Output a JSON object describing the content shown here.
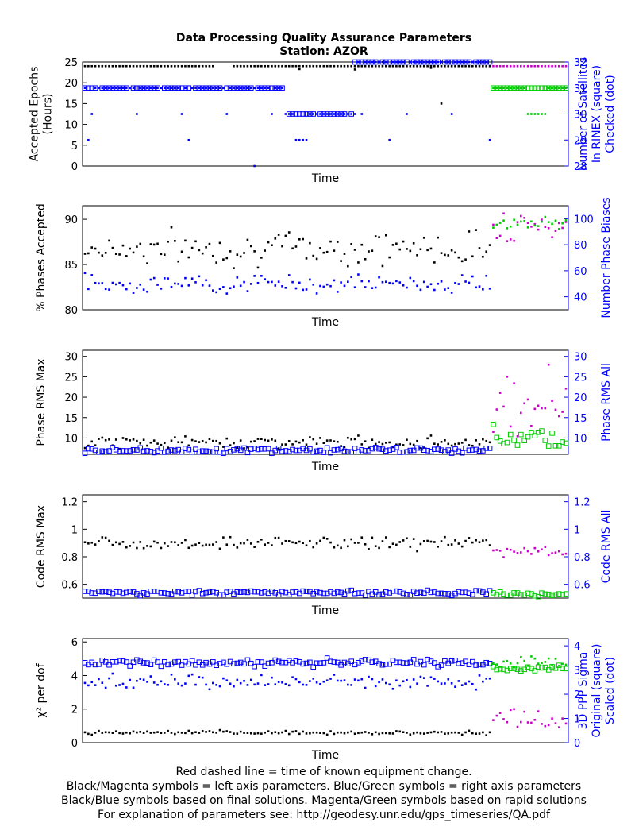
{
  "title": {
    "line1": "Data Processing Quality Assurance Parameters",
    "line2": "Station: AZOR"
  },
  "colors": {
    "final_left": "#000000",
    "rapid_left": "#cc00cc",
    "final_right": "#0000ff",
    "rapid_right": "#00cc00",
    "change_line": "#ff0000"
  },
  "footer": [
    "Red dashed line = time of known equipment change.",
    "Black/Magenta symbols = left axis parameters. Blue/Green symbols = right axis parameters",
    "Black/Blue symbols based on final solutions.  Magenta/Green symbols based on rapid solutions",
    "For explanation of parameters see: http://geodesy.unr.edu/gps_timeseries/QA.pdf"
  ],
  "chart_data": [
    {
      "type": "scatter",
      "xlabel": "Time",
      "ylabel": "Accepted Epochs (Hours)",
      "ylabel_lines": [
        "Accepted Epochs",
        "(Hours)"
      ],
      "ylim": [
        0,
        25
      ],
      "yticks": [
        0,
        5,
        10,
        15,
        20,
        25
      ],
      "y2label_lines": [
        "Number of Satellites",
        "In RINEX (square)",
        "Checked (dot)"
      ],
      "y2lim": [
        28,
        32
      ],
      "y2ticks": [
        28,
        29,
        30,
        31,
        32
      ],
      "series": {
        "left_final": {
          "kind": "const",
          "value": 24,
          "outliers": [
            [
              62,
              23.3
            ],
            [
              78,
              23.2
            ],
            [
              103,
              15
            ],
            [
              100,
              23.6
            ]
          ]
        },
        "left_rapid": {
          "kind": "const",
          "value": 24
        },
        "right_final_rinex": {
          "kind": "band",
          "value": 31,
          "alt": 32,
          "alt_from": 78
        },
        "right_final_checked": {
          "kind": "levels"
        },
        "right_rapid_rinex": {
          "kind": "band",
          "value": 31
        },
        "right_rapid_checked": {
          "kind": "levels"
        }
      }
    },
    {
      "type": "scatter",
      "xlabel": "Time",
      "ylabel": "% Phases Accepted",
      "ylabel_lines": [
        "% Phases Accepted"
      ],
      "ylim": [
        80,
        91.5
      ],
      "yticks": [
        80,
        85,
        90
      ],
      "y2label_lines": [
        "Number Phase Biases"
      ],
      "y2lim": [
        30,
        110
      ],
      "y2ticks": [
        40,
        60,
        80,
        100
      ],
      "series": {
        "left_final": {
          "kind": "noise",
          "mean": 86.8,
          "spread": 1.6
        },
        "left_rapid": {
          "kind": "noise",
          "mean": 89.6,
          "spread": 1.8
        },
        "right_final": {
          "kind": "noise",
          "mean": 50,
          "spread": 6
        },
        "right_rapid": {
          "kind": "noise",
          "mean": 96,
          "spread": 4
        }
      }
    },
    {
      "type": "scatter",
      "xlabel": "Time",
      "ylabel": "Phase RMS Max",
      "ylabel_lines": [
        "Phase RMS Max"
      ],
      "ylim": [
        6,
        31.5
      ],
      "yticks": [
        10,
        15,
        20,
        25,
        30
      ],
      "y2label_lines": [
        "Phase RMS All"
      ],
      "y2lim": [
        6,
        31.5
      ],
      "y2ticks": [
        10,
        15,
        20,
        25,
        30
      ],
      "series": {
        "left_final": {
          "kind": "noise",
          "mean": 9,
          "spread": 1.2
        },
        "left_rapid": {
          "kind": "noise",
          "mean": 19,
          "spread": 7
        },
        "right_final": {
          "kind": "noise",
          "mean": 7,
          "spread": 0.6
        },
        "right_rapid": {
          "kind": "noise",
          "mean": 10.5,
          "spread": 2.5
        }
      }
    },
    {
      "type": "scatter",
      "xlabel": "Time",
      "ylabel": "Code RMS Max",
      "ylabel_lines": [
        "Code RMS Max"
      ],
      "ylim": [
        0.5,
        1.25
      ],
      "yticks": [
        0.6,
        0.8,
        1,
        1.2
      ],
      "ytick_labels": [
        "0.6",
        "0.8",
        "1",
        "1.2"
      ],
      "y2label_lines": [
        "Code RMS All"
      ],
      "y2lim": [
        0.5,
        1.25
      ],
      "y2ticks": [
        0.6,
        0.8,
        1,
        1.2
      ],
      "y2tick_labels": [
        "0.6",
        "0.8",
        "1",
        "1.2"
      ],
      "series": {
        "left_final": {
          "kind": "noise",
          "mean": 0.9,
          "spread": 0.04
        },
        "left_rapid": {
          "kind": "noise",
          "mean": 0.84,
          "spread": 0.04
        },
        "right_final": {
          "kind": "noise",
          "mean": 0.54,
          "spread": 0.015
        },
        "right_rapid": {
          "kind": "noise",
          "mean": 0.53,
          "spread": 0.015
        }
      }
    },
    {
      "type": "scatter",
      "xlabel": "Time",
      "ylabel": "χ² per dof",
      "ylabel_lines": [
        "χ² per dof"
      ],
      "ylim": [
        0,
        6.2
      ],
      "yticks": [
        0,
        2,
        4,
        6
      ],
      "y2label_lines": [
        "3D PPP Sigma",
        "Original (square)",
        "Scaled (dot)"
      ],
      "y2lim": [
        0,
        4.3
      ],
      "y2ticks": [
        0,
        1,
        2,
        3,
        4
      ],
      "series": {
        "left_final": {
          "kind": "noise",
          "mean": 0.6,
          "spread": 0.1
        },
        "left_rapid": {
          "kind": "noise",
          "mean": 1.3,
          "spread": 0.5
        },
        "right_final_orig": {
          "kind": "noise",
          "mean": 3.3,
          "spread": 0.12
        },
        "right_final_scaled": {
          "kind": "noise",
          "mean": 2.5,
          "spread": 0.25
        },
        "right_rapid_orig": {
          "kind": "noise",
          "mean": 3.1,
          "spread": 0.1
        },
        "right_rapid_scaled": {
          "kind": "noise",
          "mean": 3.3,
          "spread": 0.25
        }
      }
    }
  ]
}
